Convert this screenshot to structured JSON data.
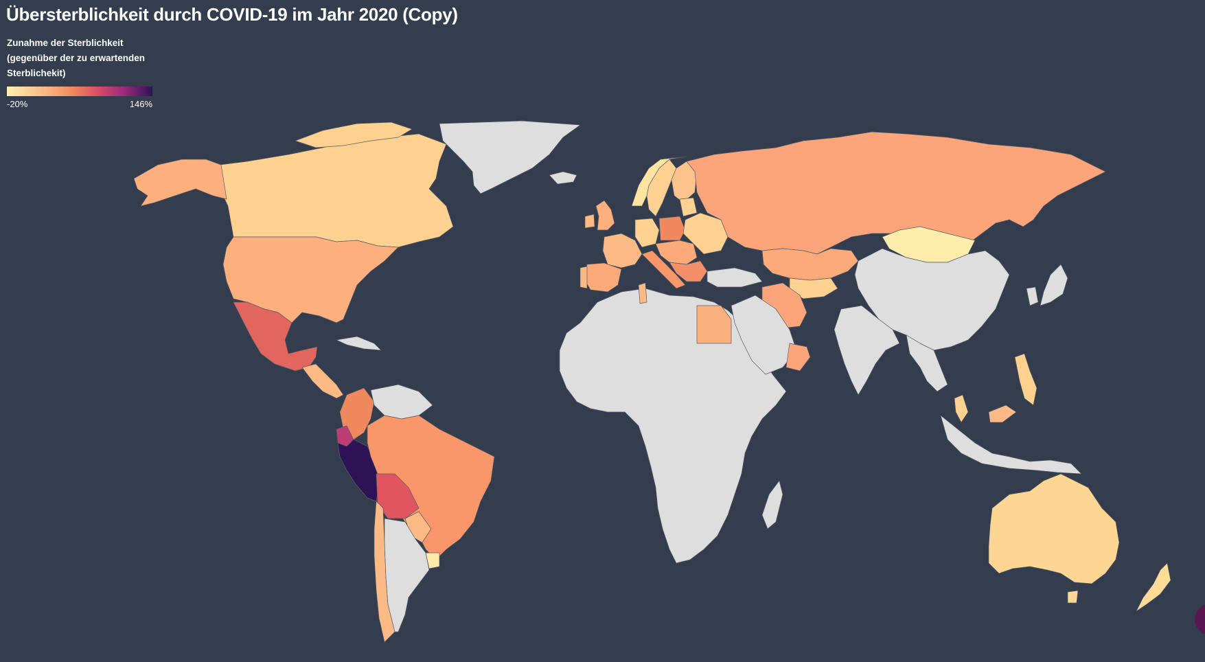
{
  "title": "Übersterblichkeit durch COVID-19 im Jahr 2020 (Copy)",
  "legend": {
    "title": "Zunahme der Sterblichkeit\n(gegenüber der zu erwartenden\nSterblichekit)",
    "min_label": "-20%",
    "max_label": "146%",
    "min": -20,
    "max": 146
  },
  "colors": {
    "background": "#333d4e",
    "no_data": "#dedede",
    "scale": [
      "#fdf0b4",
      "#fdba85",
      "#f08a5e",
      "#d94e66",
      "#9c2b7c",
      "#2e1256"
    ]
  }
}
